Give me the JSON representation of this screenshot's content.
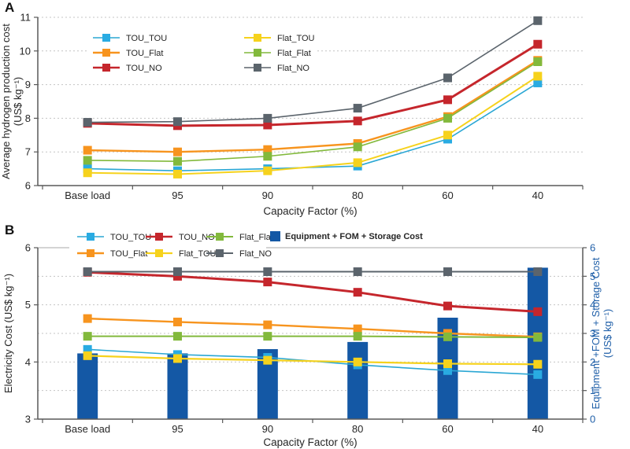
{
  "colors": {
    "axis": "#595959",
    "grid": "#c4c4c4",
    "text": "#262626",
    "right_axis_blue": "#1f5fa8",
    "bar_blue": "#1458a5"
  },
  "chart_data": [
    {
      "panel_label": "A",
      "type": "line",
      "categories": [
        "Base load",
        "95",
        "90",
        "80",
        "60",
        "40"
      ],
      "xlabel": "Capacity Factor (%)",
      "ylabel_lines": [
        "Average hydrogen production cost",
        "(US$ kg⁻¹)"
      ],
      "ylim": [
        6,
        11
      ],
      "yticks": [
        6,
        7,
        8,
        9,
        10,
        11
      ],
      "gridlines": [
        7,
        8,
        9,
        10,
        11
      ],
      "grid_style": "dotted",
      "legend_position": "upper-left",
      "legend_columns": [
        [
          "TOU_TOU",
          "TOU_Flat",
          "TOU_NO"
        ],
        [
          "Flat_TOU",
          "Flat_Flat",
          "Flat_NO"
        ]
      ],
      "series": [
        {
          "name": "TOU_TOU",
          "color": "#2aa7d4",
          "marker_color": "#29abe2",
          "line_width": 1.6,
          "values": [
            6.5,
            6.44,
            6.5,
            6.58,
            7.38,
            9.05
          ]
        },
        {
          "name": "Flat_TOU",
          "color": "#f6d21c",
          "marker_color": "#f6d21c",
          "line_width": 2.0,
          "values": [
            6.38,
            6.34,
            6.44,
            6.68,
            7.5,
            9.25
          ]
        },
        {
          "name": "TOU_Flat",
          "color": "#f7941e",
          "marker_color": "#f7941e",
          "line_width": 2.4,
          "values": [
            7.05,
            7.0,
            7.07,
            7.25,
            8.05,
            9.72
          ]
        },
        {
          "name": "Flat_Flat",
          "color": "#82b93c",
          "marker_color": "#82b93c",
          "line_width": 1.6,
          "values": [
            6.75,
            6.72,
            6.87,
            7.15,
            8.0,
            9.68
          ]
        },
        {
          "name": "TOU_NO",
          "color": "#c5262c",
          "marker_color": "#c5262c",
          "line_width": 3.0,
          "values": [
            7.85,
            7.78,
            7.8,
            7.92,
            8.55,
            10.2
          ]
        },
        {
          "name": "Flat_NO",
          "color": "#5b646c",
          "marker_color": "#5b646c",
          "line_width": 1.6,
          "values": [
            7.88,
            7.9,
            8.0,
            8.3,
            9.2,
            10.9
          ]
        }
      ]
    },
    {
      "panel_label": "B",
      "type": "line+bar",
      "categories": [
        "Base load",
        "95",
        "90",
        "80",
        "60",
        "40"
      ],
      "xlabel": "Capacity Factor (%)",
      "ylabel_lines": [
        "Electricity Cost (US$ kg⁻¹)"
      ],
      "y2label_lines": [
        "Equipment +FOM + Storage Cost",
        "(US$ kg⁻¹)"
      ],
      "ylim": [
        3,
        6
      ],
      "y2lim": [
        0,
        6
      ],
      "yticks": [
        3,
        4,
        5,
        6
      ],
      "y2ticks": [
        0,
        1,
        2,
        3,
        4,
        5,
        6
      ],
      "gridlines": [
        3.5,
        4,
        4.5,
        5,
        5.5
      ],
      "grid_style": "dotted",
      "top_border": 6,
      "legend_position": "top",
      "legend_columns": [
        [
          "TOU_TOU",
          "TOU_Flat"
        ],
        [
          "TOU_NO",
          "Flat_TOU"
        ],
        [
          "Flat_Flat",
          "Flat_NO"
        ]
      ],
      "bar_series": {
        "name": "Equipment + FOM + Storage Cost",
        "color": "#1458a5",
        "axis": "y2",
        "values": [
          2.3,
          2.3,
          2.45,
          2.7,
          3.55,
          5.3
        ]
      },
      "series": [
        {
          "name": "TOU_TOU",
          "color": "#2aa7d4",
          "marker_color": "#29abe2",
          "line_width": 1.6,
          "values": [
            4.22,
            4.13,
            4.08,
            3.95,
            3.85,
            3.78
          ]
        },
        {
          "name": "Flat_TOU",
          "color": "#f6d21c",
          "marker_color": "#f6d21c",
          "line_width": 2.2,
          "values": [
            4.11,
            4.06,
            4.03,
            4.0,
            3.97,
            3.96
          ]
        },
        {
          "name": "TOU_Flat",
          "color": "#f7941e",
          "marker_color": "#f7941e",
          "line_width": 2.4,
          "values": [
            4.76,
            4.7,
            4.65,
            4.58,
            4.5,
            4.44
          ]
        },
        {
          "name": "Flat_Flat",
          "color": "#82b93c",
          "marker_color": "#82b93c",
          "line_width": 2.0,
          "values": [
            4.45,
            4.45,
            4.45,
            4.45,
            4.44,
            4.43
          ]
        },
        {
          "name": "TOU_NO",
          "color": "#c5262c",
          "marker_color": "#c5262c",
          "line_width": 3.0,
          "values": [
            5.57,
            5.5,
            5.4,
            5.22,
            4.98,
            4.88
          ]
        },
        {
          "name": "Flat_NO",
          "color": "#5b646c",
          "marker_color": "#5b646c",
          "line_width": 2.0,
          "values": [
            5.58,
            5.58,
            5.58,
            5.58,
            5.58,
            5.58
          ]
        }
      ]
    }
  ]
}
